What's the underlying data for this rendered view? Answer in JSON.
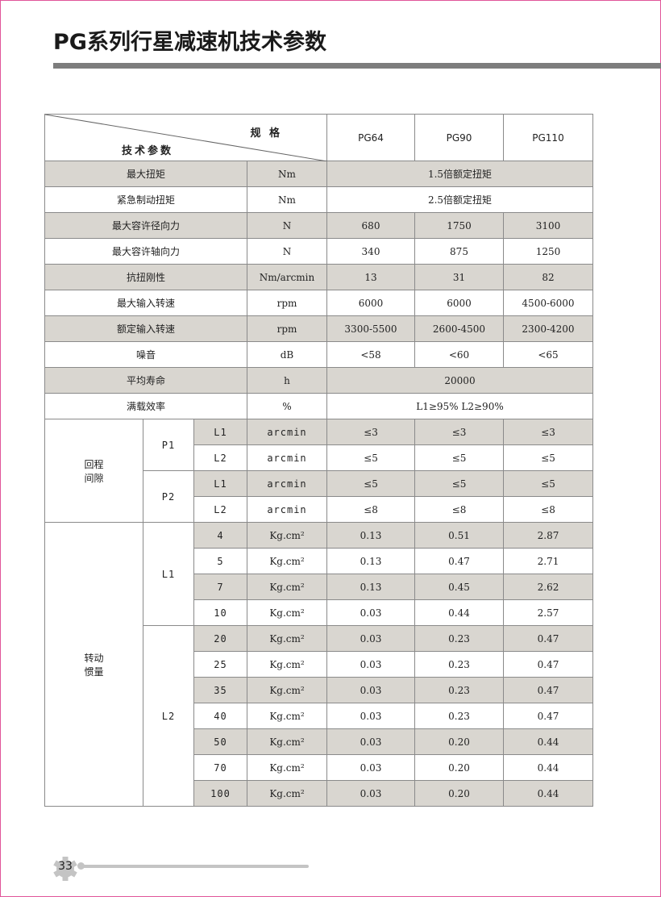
{
  "title": "PG系列行星减速机技术参数",
  "colors": {
    "shade": "#d9d6d0",
    "title_bar": "#7d7d7d",
    "border": "#e0559a"
  },
  "header": {
    "spec_label": "规 格",
    "param_label": "技术参数",
    "models": [
      "PG64",
      "PG90",
      "PG110"
    ]
  },
  "general_rows": [
    {
      "label": "最大扭矩",
      "unit": "Nm",
      "merged": "1.5倍额定扭矩",
      "shaded": true
    },
    {
      "label": "紧急制动扭矩",
      "unit": "Nm",
      "merged": "2.5倍额定扭矩",
      "shaded": false
    },
    {
      "label": "最大容许径向力",
      "unit": "N",
      "values": [
        "680",
        "1750",
        "3100"
      ],
      "shaded": true
    },
    {
      "label": "最大容许轴向力",
      "unit": "N",
      "values": [
        "340",
        "875",
        "1250"
      ],
      "shaded": false
    },
    {
      "label": "抗扭刚性",
      "unit": "Nm/arcmin",
      "values": [
        "13",
        "31",
        "82"
      ],
      "shaded": true
    },
    {
      "label": "最大输入转速",
      "unit": "rpm",
      "values": [
        "6000",
        "6000",
        "4500-6000"
      ],
      "shaded": false
    },
    {
      "label": "额定输入转速",
      "unit": "rpm",
      "values": [
        "3300-5500",
        "2600-4500",
        "2300-4200"
      ],
      "shaded": true
    },
    {
      "label": "噪音",
      "unit": "dB",
      "values": [
        "<58",
        "<60",
        "<65"
      ],
      "shaded": false
    },
    {
      "label": "平均寿命",
      "unit": "h",
      "merged": "20000",
      "shaded": true
    },
    {
      "label": "满载效率",
      "unit": "%",
      "merged": "L1≥95%   L2≥90%",
      "shaded": false
    }
  ],
  "backlash": {
    "label": "回程\n间隙",
    "groups": [
      {
        "name": "P1",
        "rows": [
          {
            "stage": "L1",
            "unit": "arcmin",
            "values": [
              "≤3",
              "≤3",
              "≤3"
            ],
            "shaded": true
          },
          {
            "stage": "L2",
            "unit": "arcmin",
            "values": [
              "≤5",
              "≤5",
              "≤5"
            ],
            "shaded": false
          }
        ]
      },
      {
        "name": "P2",
        "rows": [
          {
            "stage": "L1",
            "unit": "arcmin",
            "values": [
              "≤5",
              "≤5",
              "≤5"
            ],
            "shaded": true
          },
          {
            "stage": "L2",
            "unit": "arcmin",
            "values": [
              "≤8",
              "≤8",
              "≤8"
            ],
            "shaded": false
          }
        ]
      }
    ]
  },
  "inertia": {
    "label": "转动\n惯量",
    "unit": "Kg.cm²",
    "groups": [
      {
        "name": "L1",
        "rows": [
          {
            "ratio": "4",
            "values": [
              "0.13",
              "0.51",
              "2.87"
            ],
            "shaded": true
          },
          {
            "ratio": "5",
            "values": [
              "0.13",
              "0.47",
              "2.71"
            ],
            "shaded": false
          },
          {
            "ratio": "7",
            "values": [
              "0.13",
              "0.45",
              "2.62"
            ],
            "shaded": true
          },
          {
            "ratio": "10",
            "values": [
              "0.03",
              "0.44",
              "2.57"
            ],
            "shaded": false
          }
        ]
      },
      {
        "name": "L2",
        "rows": [
          {
            "ratio": "20",
            "values": [
              "0.03",
              "0.23",
              "0.47"
            ],
            "shaded": true
          },
          {
            "ratio": "25",
            "values": [
              "0.03",
              "0.23",
              "0.47"
            ],
            "shaded": false
          },
          {
            "ratio": "35",
            "values": [
              "0.03",
              "0.23",
              "0.47"
            ],
            "shaded": true
          },
          {
            "ratio": "40",
            "values": [
              "0.03",
              "0.23",
              "0.47"
            ],
            "shaded": false
          },
          {
            "ratio": "50",
            "values": [
              "0.03",
              "0.20",
              "0.44"
            ],
            "shaded": true
          },
          {
            "ratio": "70",
            "values": [
              "0.03",
              "0.20",
              "0.44"
            ],
            "shaded": false
          },
          {
            "ratio": "100",
            "values": [
              "0.03",
              "0.20",
              "0.44"
            ],
            "shaded": true
          }
        ]
      }
    ]
  },
  "footer": {
    "page_number": "33",
    "icon": "gear-icon"
  }
}
